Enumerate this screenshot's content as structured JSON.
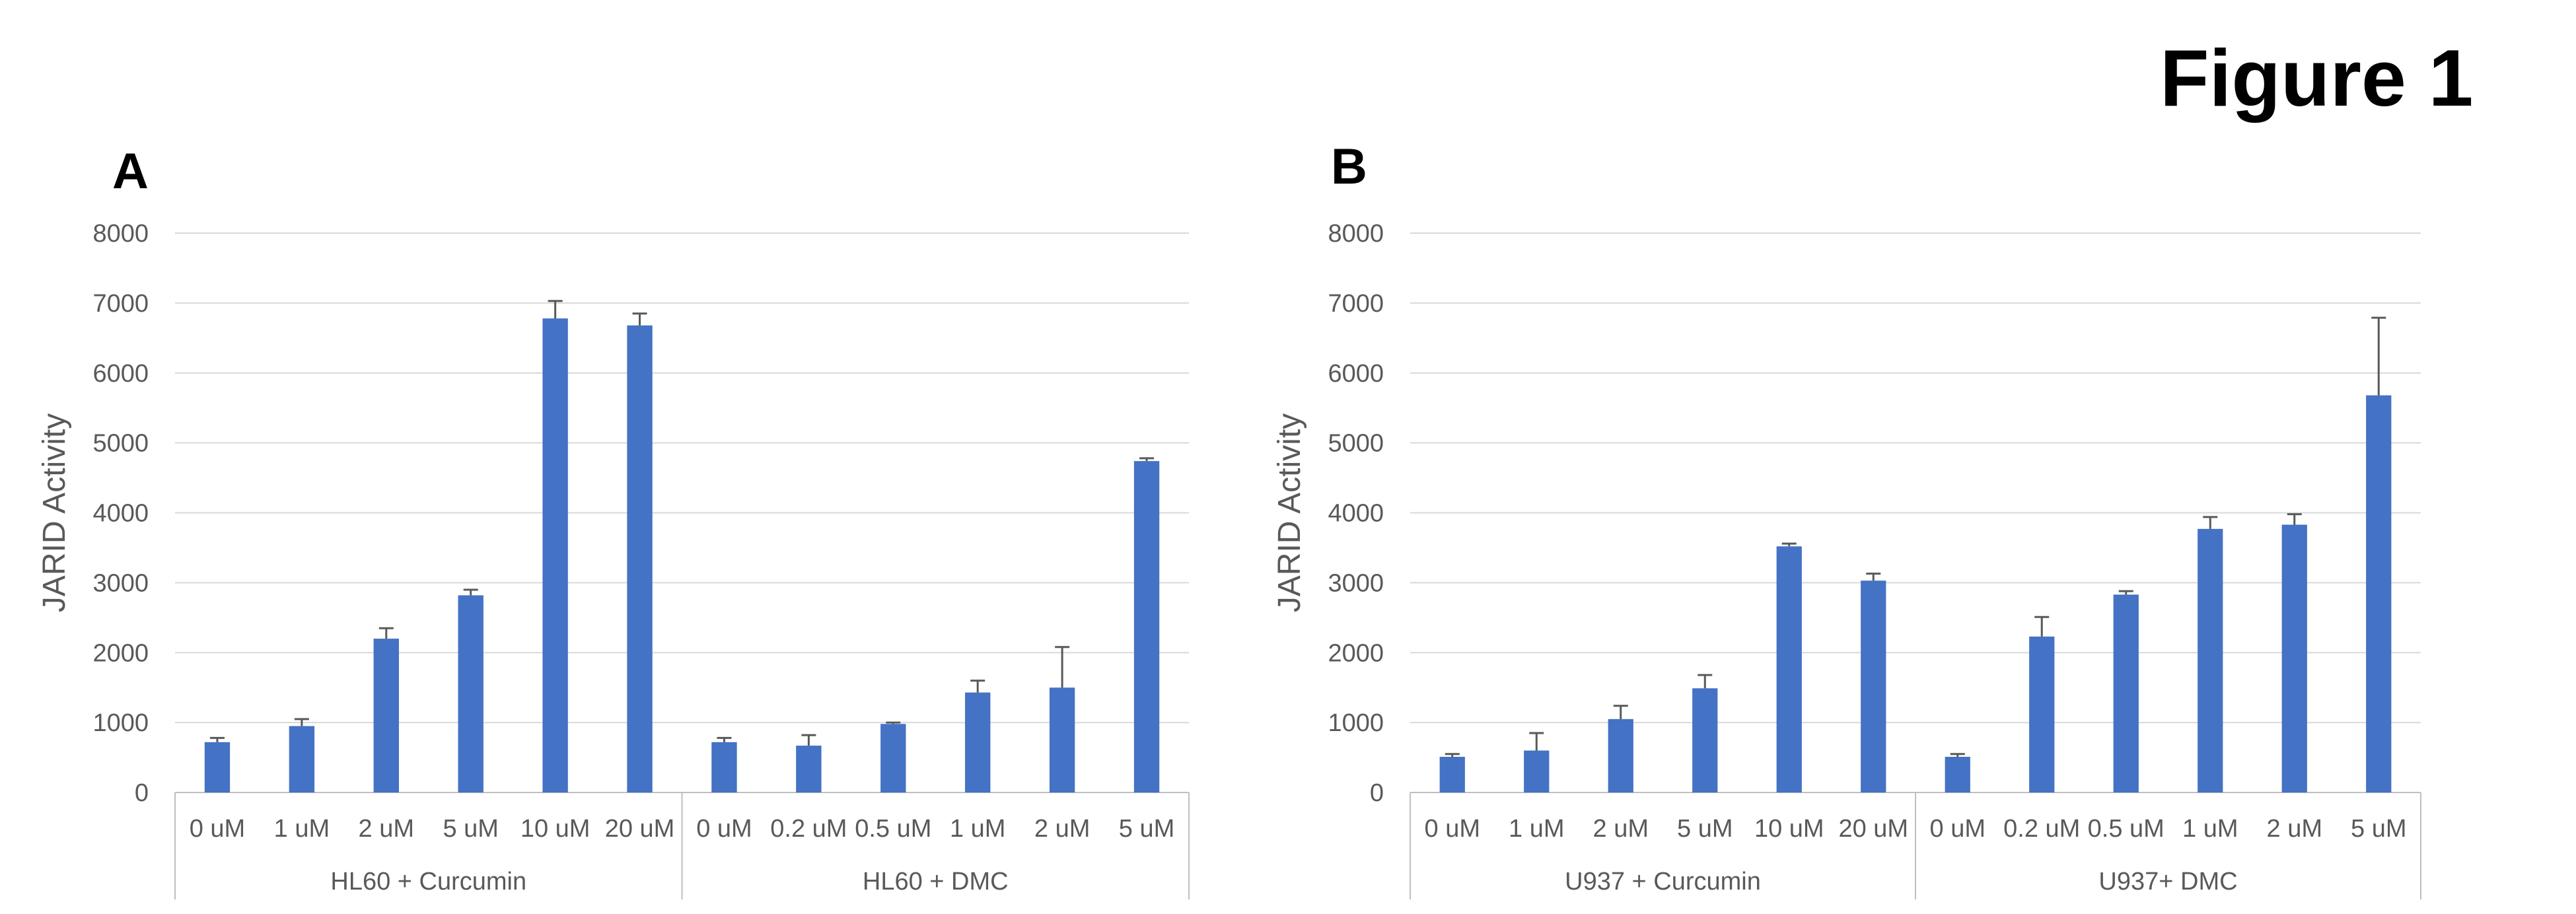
{
  "figure_title": "Figure 1",
  "colors": {
    "bar": "#4472C4",
    "grid": "#D9D9D9",
    "error_bar": "#595959",
    "text": "#595959"
  },
  "chart_data": [
    {
      "panel": "A",
      "type": "bar",
      "ylabel": "JARID Activity",
      "ylim": [
        0,
        8000
      ],
      "yticks": [
        0,
        1000,
        2000,
        3000,
        4000,
        5000,
        6000,
        7000,
        8000
      ],
      "grid": true,
      "groups": [
        {
          "label": "HL60 + Curcumin",
          "categories": [
            "0 uM",
            "1 uM",
            "2 uM",
            "5 uM",
            "10 uM",
            "20 uM"
          ],
          "values": [
            720,
            950,
            2200,
            2820,
            6780,
            6680
          ],
          "errors": [
            60,
            100,
            150,
            80,
            250,
            170
          ]
        },
        {
          "label": "HL60 + DMC",
          "categories": [
            "0 uM",
            "0.2 uM",
            "0.5 uM",
            "1 uM",
            "2 uM",
            "5 uM"
          ],
          "values": [
            720,
            670,
            980,
            1430,
            1500,
            4740
          ],
          "errors": [
            60,
            150,
            20,
            170,
            580,
            40
          ]
        }
      ]
    },
    {
      "panel": "B",
      "type": "bar",
      "ylabel": "JARID Activity",
      "ylim": [
        0,
        8000
      ],
      "yticks": [
        0,
        1000,
        2000,
        3000,
        4000,
        5000,
        6000,
        7000,
        8000
      ],
      "grid": true,
      "groups": [
        {
          "label": "U937 + Curcumin",
          "categories": [
            "0 uM",
            "1 uM",
            "2 uM",
            "5 uM",
            "10 uM",
            "20 uM"
          ],
          "values": [
            510,
            600,
            1050,
            1490,
            3520,
            3030
          ],
          "errors": [
            40,
            250,
            190,
            190,
            40,
            100
          ]
        },
        {
          "label": "U937+ DMC",
          "categories": [
            "0 uM",
            "0.2 uM",
            "0.5 uM",
            "1 uM",
            "2 uM",
            "5 uM"
          ],
          "values": [
            510,
            2230,
            2830,
            3770,
            3830,
            5680
          ],
          "errors": [
            40,
            280,
            50,
            170,
            150,
            1110
          ]
        }
      ]
    }
  ]
}
